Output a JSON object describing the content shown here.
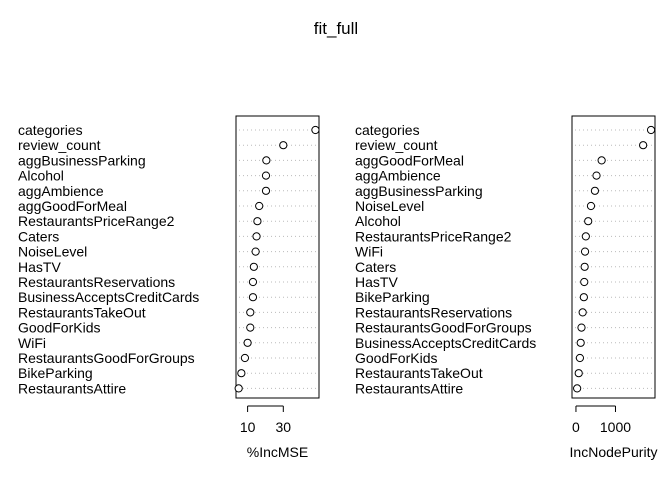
{
  "chart_data": {
    "title": "fit_full",
    "type": "scatter",
    "panels": [
      {
        "xlabel": "%IncMSE",
        "xticks": [
          10,
          30
        ],
        "xlim": [
          3.5,
          50
        ],
        "variables": [
          {
            "name": "categories",
            "value": 48
          },
          {
            "name": "review_count",
            "value": 30
          },
          {
            "name": "aggBusinessParking",
            "value": 20.5
          },
          {
            "name": "Alcohol",
            "value": 20.3
          },
          {
            "name": "aggAmbience",
            "value": 20.3
          },
          {
            "name": "aggGoodForMeal",
            "value": 16.5
          },
          {
            "name": "RestaurantsPriceRange2",
            "value": 15.5
          },
          {
            "name": "Caters",
            "value": 15.0
          },
          {
            "name": "NoiseLevel",
            "value": 14.5
          },
          {
            "name": "HasTV",
            "value": 13.5
          },
          {
            "name": "RestaurantsReservations",
            "value": 13.0
          },
          {
            "name": "BusinessAcceptsCreditCards",
            "value": 13.0
          },
          {
            "name": "RestaurantsTakeOut",
            "value": 11.5
          },
          {
            "name": "GoodForKids",
            "value": 11.5
          },
          {
            "name": "WiFi",
            "value": 10.0
          },
          {
            "name": "RestaurantsGoodForGroups",
            "value": 8.5
          },
          {
            "name": "BikeParking",
            "value": 6.5
          },
          {
            "name": "RestaurantsAttire",
            "value": 5.0
          }
        ]
      },
      {
        "xlabel": "IncNodePurity",
        "xticks": [
          0,
          1000
        ],
        "xlim": [
          -100,
          2000
        ],
        "variables": [
          {
            "name": "categories",
            "value": 1900
          },
          {
            "name": "review_count",
            "value": 1700
          },
          {
            "name": "aggGoodForMeal",
            "value": 650
          },
          {
            "name": "aggAmbience",
            "value": 520
          },
          {
            "name": "aggBusinessParking",
            "value": 480
          },
          {
            "name": "NoiseLevel",
            "value": 380
          },
          {
            "name": "Alcohol",
            "value": 310
          },
          {
            "name": "RestaurantsPriceRange2",
            "value": 250
          },
          {
            "name": "WiFi",
            "value": 230
          },
          {
            "name": "Caters",
            "value": 220
          },
          {
            "name": "HasTV",
            "value": 210
          },
          {
            "name": "BikeParking",
            "value": 200
          },
          {
            "name": "RestaurantsReservations",
            "value": 170
          },
          {
            "name": "RestaurantsGoodForGroups",
            "value": 140
          },
          {
            "name": "BusinessAcceptsCreditCards",
            "value": 120
          },
          {
            "name": "GoodForKids",
            "value": 100
          },
          {
            "name": "RestaurantsTakeOut",
            "value": 70
          },
          {
            "name": "RestaurantsAttire",
            "value": 30
          }
        ]
      }
    ]
  }
}
